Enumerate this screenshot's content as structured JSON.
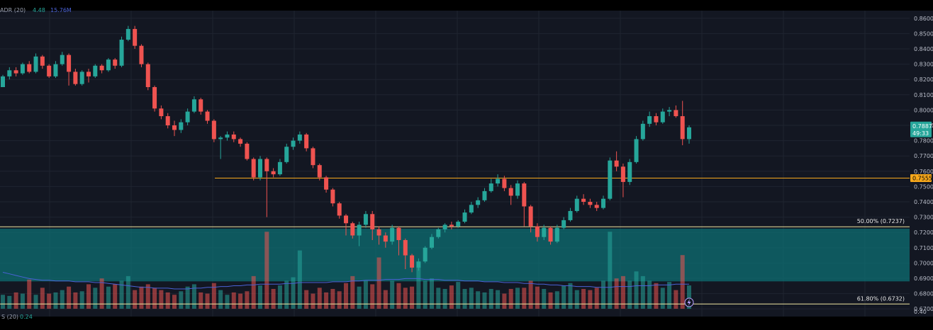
{
  "indicator_top": {
    "label": "ADR (20)",
    "value1": "4.48",
    "value2": "15.76M"
  },
  "indicator_bottom": {
    "label": "S (20)",
    "value": "0.24"
  },
  "price_tag": {
    "price": "0.7887",
    "countdown": "49:33"
  },
  "level_tag": "0.7555",
  "fib_50_label": "50.00% (0.7237)",
  "fib_618_label": "61.80% (0.6732)",
  "colors": {
    "background": "#131722",
    "up": "#26a69a",
    "down": "#ef5350",
    "zone": "#0d6f73",
    "level": "#f7a81b",
    "fib": "#f0e6a0",
    "ma": "#4a62d6",
    "grid": "#1f2430"
  },
  "chart_data": {
    "type": "candlestick",
    "ylim": [
      0.665,
      0.865
    ],
    "y_ticks": [
      "0.8600",
      "0.8500",
      "0.8400",
      "0.8300",
      "0.8200",
      "0.8100",
      "0.8000",
      "0.7900",
      "0.7800",
      "0.7700",
      "0.7600",
      "0.7500",
      "0.7400",
      "0.7300",
      "0.7200",
      "0.7100",
      "0.7000",
      "0.6900",
      "0.6800",
      "0.6700"
    ],
    "bottom_tick": "0.40",
    "horizontal_levels": {
      "resistance": 0.7555,
      "fib_50": 0.7237,
      "fib_618": 0.6732,
      "zone": [
        0.688,
        0.7225
      ]
    },
    "candles": [
      [
        0.815,
        0.822,
        0.815,
        0.823
      ],
      [
        0.822,
        0.826,
        0.82,
        0.828
      ],
      [
        0.826,
        0.824,
        0.822,
        0.828
      ],
      [
        0.824,
        0.83,
        0.823,
        0.831
      ],
      [
        0.83,
        0.825,
        0.824,
        0.832
      ],
      [
        0.825,
        0.835,
        0.824,
        0.837
      ],
      [
        0.835,
        0.829,
        0.827,
        0.836
      ],
      [
        0.829,
        0.822,
        0.821,
        0.83
      ],
      [
        0.822,
        0.83,
        0.821,
        0.832
      ],
      [
        0.83,
        0.836,
        0.829,
        0.838
      ],
      [
        0.836,
        0.825,
        0.816,
        0.837
      ],
      [
        0.825,
        0.817,
        0.816,
        0.827
      ],
      [
        0.817,
        0.825,
        0.816,
        0.826
      ],
      [
        0.825,
        0.822,
        0.818,
        0.827
      ],
      [
        0.822,
        0.829,
        0.821,
        0.83
      ],
      [
        0.829,
        0.826,
        0.824,
        0.83
      ],
      [
        0.826,
        0.833,
        0.825,
        0.834
      ],
      [
        0.833,
        0.829,
        0.827,
        0.834
      ],
      [
        0.829,
        0.846,
        0.828,
        0.848
      ],
      [
        0.846,
        0.853,
        0.845,
        0.855
      ],
      [
        0.853,
        0.842,
        0.84,
        0.855
      ],
      [
        0.842,
        0.83,
        0.828,
        0.843
      ],
      [
        0.83,
        0.815,
        0.813,
        0.831
      ],
      [
        0.815,
        0.801,
        0.799,
        0.816
      ],
      [
        0.801,
        0.796,
        0.794,
        0.803
      ],
      [
        0.796,
        0.79,
        0.788,
        0.798
      ],
      [
        0.79,
        0.787,
        0.783,
        0.793
      ],
      [
        0.787,
        0.792,
        0.785,
        0.794
      ],
      [
        0.792,
        0.799,
        0.79,
        0.801
      ],
      [
        0.799,
        0.807,
        0.798,
        0.809
      ],
      [
        0.807,
        0.799,
        0.797,
        0.808
      ],
      [
        0.799,
        0.793,
        0.791,
        0.8
      ],
      [
        0.793,
        0.781,
        0.779,
        0.794
      ],
      [
        0.781,
        0.782,
        0.768,
        0.783
      ],
      [
        0.782,
        0.784,
        0.78,
        0.786
      ],
      [
        0.784,
        0.781,
        0.779,
        0.786
      ],
      [
        0.781,
        0.778,
        0.776,
        0.782
      ],
      [
        0.778,
        0.768,
        0.767,
        0.779
      ],
      [
        0.768,
        0.756,
        0.754,
        0.769
      ],
      [
        0.756,
        0.768,
        0.754,
        0.77
      ],
      [
        0.768,
        0.76,
        0.73,
        0.769
      ],
      [
        0.76,
        0.758,
        0.756,
        0.762
      ],
      [
        0.758,
        0.766,
        0.757,
        0.768
      ],
      [
        0.766,
        0.776,
        0.765,
        0.778
      ],
      [
        0.776,
        0.78,
        0.774,
        0.782
      ],
      [
        0.78,
        0.784,
        0.778,
        0.786
      ],
      [
        0.784,
        0.775,
        0.773,
        0.785
      ],
      [
        0.775,
        0.764,
        0.762,
        0.776
      ],
      [
        0.764,
        0.756,
        0.754,
        0.765
      ],
      [
        0.756,
        0.748,
        0.746,
        0.757
      ],
      [
        0.748,
        0.739,
        0.737,
        0.749
      ],
      [
        0.739,
        0.731,
        0.729,
        0.74
      ],
      [
        0.731,
        0.726,
        0.718,
        0.732
      ],
      [
        0.726,
        0.718,
        0.716,
        0.727
      ],
      [
        0.718,
        0.725,
        0.711,
        0.727
      ],
      [
        0.725,
        0.732,
        0.723,
        0.734
      ],
      [
        0.732,
        0.722,
        0.715,
        0.734
      ],
      [
        0.722,
        0.718,
        0.712,
        0.724
      ],
      [
        0.718,
        0.714,
        0.71,
        0.72
      ],
      [
        0.714,
        0.723,
        0.712,
        0.725
      ],
      [
        0.723,
        0.715,
        0.705,
        0.724
      ],
      [
        0.715,
        0.705,
        0.696,
        0.716
      ],
      [
        0.705,
        0.697,
        0.694,
        0.706
      ],
      [
        0.697,
        0.701,
        0.695,
        0.703
      ],
      [
        0.701,
        0.71,
        0.7,
        0.711
      ],
      [
        0.71,
        0.717,
        0.709,
        0.719
      ],
      [
        0.717,
        0.722,
        0.716,
        0.723
      ],
      [
        0.722,
        0.725,
        0.72,
        0.726
      ],
      [
        0.725,
        0.724,
        0.722,
        0.727
      ],
      [
        0.724,
        0.727,
        0.723,
        0.728
      ],
      [
        0.727,
        0.733,
        0.726,
        0.735
      ],
      [
        0.733,
        0.738,
        0.732,
        0.74
      ],
      [
        0.738,
        0.741,
        0.736,
        0.743
      ],
      [
        0.741,
        0.747,
        0.74,
        0.749
      ],
      [
        0.747,
        0.752,
        0.746,
        0.755
      ],
      [
        0.752,
        0.755,
        0.75,
        0.758
      ],
      [
        0.755,
        0.749,
        0.747,
        0.757
      ],
      [
        0.749,
        0.744,
        0.738,
        0.751
      ],
      [
        0.744,
        0.752,
        0.742,
        0.754
      ],
      [
        0.752,
        0.737,
        0.724,
        0.753
      ],
      [
        0.737,
        0.724,
        0.72,
        0.738
      ],
      [
        0.724,
        0.717,
        0.714,
        0.726
      ],
      [
        0.717,
        0.723,
        0.715,
        0.725
      ],
      [
        0.723,
        0.714,
        0.712,
        0.724
      ],
      [
        0.714,
        0.723,
        0.713,
        0.725
      ],
      [
        0.723,
        0.728,
        0.722,
        0.73
      ],
      [
        0.728,
        0.734,
        0.727,
        0.736
      ],
      [
        0.734,
        0.742,
        0.733,
        0.744
      ],
      [
        0.742,
        0.74,
        0.738,
        0.745
      ],
      [
        0.74,
        0.738,
        0.736,
        0.742
      ],
      [
        0.738,
        0.736,
        0.734,
        0.74
      ],
      [
        0.736,
        0.742,
        0.735,
        0.744
      ],
      [
        0.742,
        0.767,
        0.741,
        0.769
      ],
      [
        0.767,
        0.763,
        0.76,
        0.773
      ],
      [
        0.763,
        0.753,
        0.743,
        0.765
      ],
      [
        0.753,
        0.766,
        0.751,
        0.768
      ],
      [
        0.766,
        0.781,
        0.765,
        0.783
      ],
      [
        0.781,
        0.791,
        0.78,
        0.793
      ],
      [
        0.791,
        0.796,
        0.789,
        0.799
      ],
      [
        0.796,
        0.792,
        0.79,
        0.798
      ],
      [
        0.792,
        0.799,
        0.791,
        0.801
      ],
      [
        0.799,
        0.8,
        0.796,
        0.802
      ],
      [
        0.8,
        0.796,
        0.795,
        0.803
      ],
      [
        0.796,
        0.781,
        0.777,
        0.806
      ],
      [
        0.781,
        0.7887,
        0.778,
        0.79
      ]
    ],
    "volume": [
      60,
      55,
      70,
      65,
      125,
      60,
      90,
      65,
      70,
      80,
      95,
      70,
      75,
      105,
      90,
      130,
      95,
      105,
      120,
      140,
      80,
      95,
      105,
      90,
      80,
      70,
      60,
      75,
      95,
      105,
      70,
      65,
      110,
      80,
      60,
      70,
      65,
      75,
      140,
      100,
      330,
      85,
      100,
      120,
      135,
      250,
      80,
      65,
      90,
      70,
      85,
      75,
      110,
      140,
      95,
      120,
      105,
      220,
      80,
      120,
      110,
      90,
      95,
      180,
      120,
      130,
      90,
      85,
      100,
      115,
      85,
      90,
      75,
      70,
      85,
      80,
      65,
      85,
      90,
      90,
      120,
      95,
      85,
      70,
      75,
      100,
      110,
      80,
      85,
      80,
      90,
      120,
      330,
      130,
      140,
      120,
      160,
      140,
      120,
      110,
      90,
      115,
      80,
      230,
      100
    ],
    "volume_scale_max": 340,
    "volume_ma": [
      0.46,
      0.44,
      0.42,
      0.4,
      0.38,
      0.37,
      0.36,
      0.36,
      0.35,
      0.35,
      0.35,
      0.34,
      0.34,
      0.34,
      0.33,
      0.33,
      0.32,
      0.31,
      0.3,
      0.29,
      0.28,
      0.27,
      0.27,
      0.26,
      0.26,
      0.26,
      0.25,
      0.25,
      0.25,
      0.26,
      0.26,
      0.27,
      0.27,
      0.28,
      0.28,
      0.29,
      0.29,
      0.3,
      0.3,
      0.31,
      0.31,
      0.31,
      0.31,
      0.32,
      0.32,
      0.33,
      0.33,
      0.33,
      0.33,
      0.33,
      0.34,
      0.34,
      0.34,
      0.35,
      0.35,
      0.36,
      0.36,
      0.36,
      0.37,
      0.37,
      0.37,
      0.38,
      0.38,
      0.38,
      0.37,
      0.37,
      0.37,
      0.36,
      0.36,
      0.36,
      0.35,
      0.35,
      0.35,
      0.34,
      0.34,
      0.34,
      0.33,
      0.33,
      0.33,
      0.32,
      0.32,
      0.31,
      0.31,
      0.3,
      0.3,
      0.29,
      0.29,
      0.28,
      0.28,
      0.28,
      0.27,
      0.27,
      0.27,
      0.28,
      0.28,
      0.28,
      0.29,
      0.29,
      0.29,
      0.3,
      0.3,
      0.3,
      0.31,
      0.31,
      0.31
    ]
  }
}
